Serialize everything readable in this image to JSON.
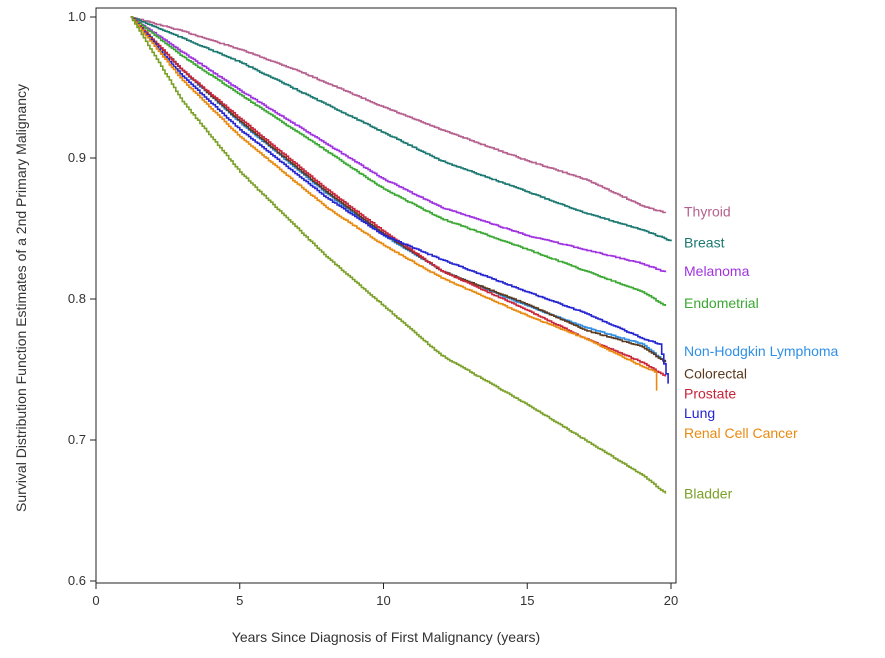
{
  "chart_data": {
    "type": "line",
    "step": true,
    "xlabel": "Years Since Diagnosis of First Malignancy (years)",
    "ylabel": "Survival Distribution Function Estimates of a 2nd Primary Malignancy",
    "xlim": [
      0,
      20
    ],
    "ylim": [
      0.6,
      1.0
    ],
    "xticks": [
      0,
      5,
      10,
      15,
      20
    ],
    "yticks": [
      0.6,
      0.7,
      0.8,
      0.9,
      1.0
    ],
    "ytick_labels": [
      "0.6",
      "0.7",
      "0.8",
      "0.9",
      "1.0"
    ],
    "grid": false,
    "legend": "labels at right end of each line",
    "series": [
      {
        "name": "Thyroid",
        "color": "#b5608e",
        "points": [
          [
            1.2,
            1.0
          ],
          [
            3,
            0.99
          ],
          [
            5,
            0.977
          ],
          [
            7,
            0.962
          ],
          [
            10,
            0.936
          ],
          [
            12,
            0.92
          ],
          [
            15,
            0.898
          ],
          [
            17,
            0.885
          ],
          [
            19,
            0.866
          ],
          [
            19.8,
            0.861
          ]
        ]
      },
      {
        "name": "Breast",
        "color": "#1a7870",
        "points": [
          [
            1.2,
            1.0
          ],
          [
            3,
            0.985
          ],
          [
            5,
            0.968
          ],
          [
            8,
            0.938
          ],
          [
            10,
            0.918
          ],
          [
            12,
            0.898
          ],
          [
            15,
            0.876
          ],
          [
            17,
            0.861
          ],
          [
            19,
            0.849
          ],
          [
            20,
            0.841
          ]
        ]
      },
      {
        "name": "Melanoma",
        "color": "#a033e0",
        "points": [
          [
            1.2,
            1.0
          ],
          [
            3,
            0.975
          ],
          [
            5,
            0.948
          ],
          [
            8,
            0.91
          ],
          [
            10,
            0.885
          ],
          [
            12,
            0.865
          ],
          [
            15,
            0.845
          ],
          [
            17,
            0.835
          ],
          [
            19,
            0.825
          ],
          [
            19.8,
            0.819
          ]
        ]
      },
      {
        "name": "Endometrial",
        "color": "#3aa832",
        "points": [
          [
            1.2,
            1.0
          ],
          [
            3,
            0.972
          ],
          [
            5,
            0.945
          ],
          [
            8,
            0.905
          ],
          [
            10,
            0.878
          ],
          [
            12,
            0.857
          ],
          [
            15,
            0.835
          ],
          [
            17,
            0.82
          ],
          [
            19,
            0.805
          ],
          [
            19.8,
            0.795
          ]
        ]
      },
      {
        "name": "Non-Hodgkin Lymphoma",
        "color": "#2f8fe6",
        "points": [
          [
            1.2,
            1.0
          ],
          [
            3,
            0.962
          ],
          [
            5,
            0.925
          ],
          [
            8,
            0.875
          ],
          [
            10,
            0.845
          ],
          [
            12,
            0.82
          ],
          [
            15,
            0.795
          ],
          [
            17,
            0.78
          ],
          [
            19,
            0.768
          ],
          [
            19.8,
            0.755
          ]
        ]
      },
      {
        "name": "Colorectal",
        "color": "#5a3a1f",
        "points": [
          [
            1.2,
            1.0
          ],
          [
            3,
            0.962
          ],
          [
            5,
            0.926
          ],
          [
            8,
            0.876
          ],
          [
            10,
            0.846
          ],
          [
            12,
            0.82
          ],
          [
            15,
            0.796
          ],
          [
            17,
            0.778
          ],
          [
            19,
            0.766
          ],
          [
            19.8,
            0.755
          ]
        ]
      },
      {
        "name": "Prostate",
        "color": "#c8243a",
        "points": [
          [
            1.2,
            1.0
          ],
          [
            3,
            0.962
          ],
          [
            5,
            0.928
          ],
          [
            8,
            0.878
          ],
          [
            10,
            0.848
          ],
          [
            12,
            0.82
          ],
          [
            15,
            0.792
          ],
          [
            17,
            0.772
          ],
          [
            19,
            0.755
          ],
          [
            19.8,
            0.745
          ]
        ]
      },
      {
        "name": "Lung",
        "color": "#2424d0",
        "points": [
          [
            1.2,
            1.0
          ],
          [
            3,
            0.958
          ],
          [
            5,
            0.92
          ],
          [
            8,
            0.872
          ],
          [
            10,
            0.845
          ],
          [
            12,
            0.828
          ],
          [
            15,
            0.805
          ],
          [
            17,
            0.79
          ],
          [
            19,
            0.772
          ],
          [
            19.6,
            0.768
          ],
          [
            19.9,
            0.74
          ]
        ]
      },
      {
        "name": "Renal Cell Cancer",
        "color": "#e88a10",
        "points": [
          [
            1.2,
            1.0
          ],
          [
            3,
            0.955
          ],
          [
            5,
            0.915
          ],
          [
            8,
            0.865
          ],
          [
            10,
            0.838
          ],
          [
            12,
            0.815
          ],
          [
            15,
            0.788
          ],
          [
            17,
            0.772
          ],
          [
            19,
            0.752
          ],
          [
            19.5,
            0.748
          ],
          [
            19.5,
            0.735
          ]
        ]
      },
      {
        "name": "Bladder",
        "color": "#7aa028",
        "points": [
          [
            1.2,
            1.0
          ],
          [
            3,
            0.94
          ],
          [
            5,
            0.89
          ],
          [
            8,
            0.83
          ],
          [
            10,
            0.795
          ],
          [
            12,
            0.76
          ],
          [
            15,
            0.725
          ],
          [
            17,
            0.7
          ],
          [
            19,
            0.675
          ],
          [
            19.8,
            0.662
          ]
        ]
      }
    ],
    "label_values": {
      "Thyroid": 0.862,
      "Breast": 0.84,
      "Melanoma": 0.82,
      "Endometrial": 0.797,
      "Non-Hodgkin Lymphoma": 0.763,
      "Colorectal": 0.747,
      "Prostate": 0.733,
      "Lung": 0.719,
      "Renal Cell Cancer": 0.705,
      "Bladder": 0.662
    }
  }
}
